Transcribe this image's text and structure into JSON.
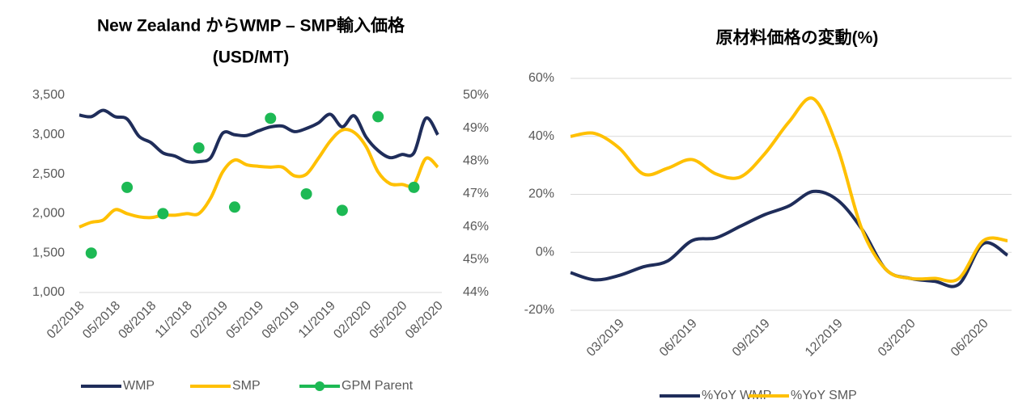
{
  "chart_data": [
    {
      "type": "line",
      "title": "New Zealand からWMP – SMP輸入価格",
      "subtitle": "(USD/MT)",
      "categories": [
        "02/2018",
        null,
        null,
        "05/2018",
        null,
        null,
        "08/2018",
        null,
        null,
        "11/2018",
        null,
        null,
        "02/2019",
        null,
        null,
        "05/2019",
        null,
        null,
        "08/2019",
        null,
        null,
        "11/2019",
        null,
        null,
        "02/2020",
        null,
        null,
        "05/2020",
        null,
        null,
        "08/2020"
      ],
      "series": [
        {
          "name": "WMP",
          "color": "#1f2d5a",
          "values": [
            3250,
            3230,
            3310,
            3230,
            3200,
            2980,
            2900,
            2770,
            2730,
            2660,
            2660,
            2710,
            3020,
            3000,
            2990,
            3050,
            3100,
            3110,
            3040,
            3080,
            3150,
            3260,
            3100,
            3240,
            2970,
            2800,
            2710,
            2750,
            2770,
            3210,
            3000
          ]
        },
        {
          "name": "SMP",
          "color": "#ffc000",
          "values": [
            1830,
            1890,
            1920,
            2050,
            2000,
            1960,
            1950,
            1980,
            1980,
            2000,
            2000,
            2200,
            2530,
            2680,
            2620,
            2600,
            2590,
            2590,
            2480,
            2500,
            2700,
            2920,
            3060,
            3030,
            2850,
            2530,
            2380,
            2370,
            2370,
            2700,
            2590
          ]
        },
        {
          "name": "GPM Parent",
          "color": "#1db954",
          "type": "scatter",
          "axis": "y2",
          "values": [
            null,
            45.2,
            null,
            null,
            47.2,
            null,
            null,
            46.4,
            null,
            null,
            48.4,
            null,
            null,
            46.6,
            null,
            null,
            49.3,
            null,
            null,
            47.0,
            null,
            null,
            46.5,
            null,
            null,
            49.35,
            null,
            null,
            47.2,
            null,
            null
          ]
        }
      ],
      "ylim": [
        1000,
        3500
      ],
      "yticks": [
        {
          "value": 1000,
          "label": "1,000"
        },
        {
          "value": 1500,
          "label": "1,500"
        },
        {
          "value": 2000,
          "label": "2,000"
        },
        {
          "value": 2500,
          "label": "2,500"
        },
        {
          "value": 3000,
          "label": "3,000"
        },
        {
          "value": 3500,
          "label": "3,500"
        }
      ],
      "y2lim": [
        44,
        50
      ],
      "y2ticks": [
        {
          "value": 44,
          "label": "44%"
        },
        {
          "value": 45,
          "label": "45%"
        },
        {
          "value": 46,
          "label": "46%"
        },
        {
          "value": 47,
          "label": "47%"
        },
        {
          "value": 48,
          "label": "48%"
        },
        {
          "value": 49,
          "label": "49%"
        },
        {
          "value": 50,
          "label": "50%"
        }
      ],
      "grid": false,
      "legend": "bottom"
    },
    {
      "type": "line",
      "title": "原材料価格の変動(%)",
      "categories": [
        null,
        null,
        "03/2019",
        null,
        null,
        "06/2019",
        null,
        null,
        "09/2019",
        null,
        null,
        "12/2019",
        null,
        null,
        "03/2020",
        null,
        null,
        "06/2020",
        null
      ],
      "series": [
        {
          "name": "%YoY WMP",
          "color": "#1f2d5a",
          "values": [
            -7,
            -9.5,
            -8,
            -5,
            -3,
            4,
            5,
            9,
            13,
            16,
            21,
            18,
            8,
            -6,
            -9,
            -10,
            -11,
            3,
            -1
          ]
        },
        {
          "name": "%YoY SMP",
          "color": "#ffc000",
          "values": [
            40,
            41,
            36,
            27,
            29,
            32,
            27,
            26,
            34,
            45,
            53,
            36,
            8,
            -6,
            -9,
            -9,
            -9,
            4,
            4
          ]
        }
      ],
      "ylim": [
        -20,
        60
      ],
      "yticks": [
        {
          "value": -20,
          "label": "-20%"
        },
        {
          "value": 0,
          "label": "0%"
        },
        {
          "value": 20,
          "label": "20%"
        },
        {
          "value": 40,
          "label": "40%"
        },
        {
          "value": 60,
          "label": "60%"
        }
      ],
      "grid": true,
      "legend": "bottom"
    }
  ]
}
